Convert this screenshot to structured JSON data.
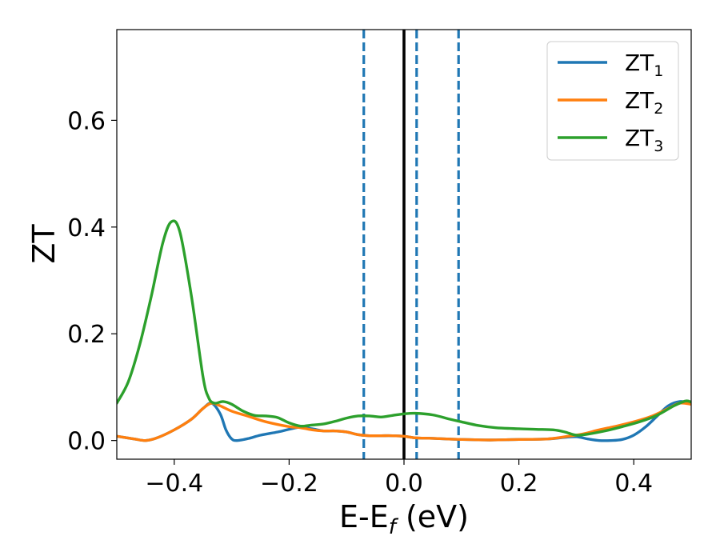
{
  "chart_data": {
    "type": "line",
    "xlabel": "E-E",
    "xlabel_sub": "f",
    "xlabel_unit": " (eV)",
    "ylabel": "ZT",
    "xlim": [
      -0.5,
      0.5
    ],
    "ylim": [
      -0.035,
      0.77
    ],
    "xticks": [
      -0.4,
      -0.2,
      0.0,
      0.2,
      0.4
    ],
    "xtick_labels": [
      "−0.4",
      "−0.2",
      "0.0",
      "0.2",
      "0.4"
    ],
    "yticks": [
      0.0,
      0.2,
      0.4,
      0.6
    ],
    "ytick_labels": [
      "0.0",
      "0.2",
      "0.4",
      "0.6"
    ],
    "grid": false,
    "legend_position": "top-right",
    "vlines": [
      {
        "x": 0.0,
        "style": "solid",
        "color": "#000000"
      },
      {
        "x": -0.07,
        "style": "dashed",
        "color": "#1f77b4"
      },
      {
        "x": 0.022,
        "style": "dashed",
        "color": "#1f77b4"
      },
      {
        "x": 0.095,
        "style": "dashed",
        "color": "#1f77b4"
      }
    ],
    "series": [
      {
        "name": "ZT",
        "sub": "1",
        "color": "#1f77b4",
        "points": [
          [
            -0.5,
            0.008
          ],
          [
            -0.47,
            0.003
          ],
          [
            -0.45,
            0.0
          ],
          [
            -0.43,
            0.005
          ],
          [
            -0.4,
            0.02
          ],
          [
            -0.37,
            0.04
          ],
          [
            -0.35,
            0.06
          ],
          [
            -0.335,
            0.07
          ],
          [
            -0.32,
            0.05
          ],
          [
            -0.31,
            0.02
          ],
          [
            -0.3,
            0.003
          ],
          [
            -0.29,
            0.0
          ],
          [
            -0.27,
            0.004
          ],
          [
            -0.25,
            0.01
          ],
          [
            -0.22,
            0.016
          ],
          [
            -0.2,
            0.021
          ],
          [
            -0.18,
            0.025
          ],
          [
            -0.16,
            0.022
          ],
          [
            -0.14,
            0.018
          ],
          [
            -0.12,
            0.018
          ],
          [
            -0.1,
            0.016
          ],
          [
            -0.08,
            0.011
          ],
          [
            -0.06,
            0.009
          ],
          [
            -0.04,
            0.009
          ],
          [
            -0.02,
            0.009
          ],
          [
            0.0,
            0.008
          ],
          [
            0.02,
            0.005
          ],
          [
            0.05,
            0.004
          ],
          [
            0.1,
            0.002
          ],
          [
            0.15,
            0.001
          ],
          [
            0.2,
            0.002
          ],
          [
            0.25,
            0.003
          ],
          [
            0.28,
            0.006
          ],
          [
            0.3,
            0.007
          ],
          [
            0.32,
            0.003
          ],
          [
            0.34,
            0.0
          ],
          [
            0.36,
            0.0
          ],
          [
            0.38,
            0.002
          ],
          [
            0.4,
            0.01
          ],
          [
            0.42,
            0.025
          ],
          [
            0.44,
            0.045
          ],
          [
            0.46,
            0.065
          ],
          [
            0.48,
            0.073
          ],
          [
            0.5,
            0.07
          ]
        ]
      },
      {
        "name": "ZT",
        "sub": "2",
        "color": "#ff7f0e",
        "points": [
          [
            -0.5,
            0.008
          ],
          [
            -0.47,
            0.003
          ],
          [
            -0.45,
            0.0
          ],
          [
            -0.43,
            0.005
          ],
          [
            -0.4,
            0.02
          ],
          [
            -0.37,
            0.04
          ],
          [
            -0.35,
            0.06
          ],
          [
            -0.335,
            0.07
          ],
          [
            -0.32,
            0.065
          ],
          [
            -0.3,
            0.055
          ],
          [
            -0.27,
            0.045
          ],
          [
            -0.24,
            0.035
          ],
          [
            -0.2,
            0.026
          ],
          [
            -0.18,
            0.024
          ],
          [
            -0.16,
            0.02
          ],
          [
            -0.14,
            0.018
          ],
          [
            -0.12,
            0.018
          ],
          [
            -0.1,
            0.016
          ],
          [
            -0.08,
            0.011
          ],
          [
            -0.06,
            0.009
          ],
          [
            -0.04,
            0.009
          ],
          [
            -0.02,
            0.009
          ],
          [
            0.0,
            0.008
          ],
          [
            0.02,
            0.005
          ],
          [
            0.05,
            0.004
          ],
          [
            0.1,
            0.002
          ],
          [
            0.15,
            0.001
          ],
          [
            0.2,
            0.002
          ],
          [
            0.25,
            0.003
          ],
          [
            0.28,
            0.007
          ],
          [
            0.31,
            0.012
          ],
          [
            0.34,
            0.02
          ],
          [
            0.37,
            0.027
          ],
          [
            0.4,
            0.035
          ],
          [
            0.43,
            0.045
          ],
          [
            0.46,
            0.06
          ],
          [
            0.48,
            0.07
          ],
          [
            0.5,
            0.068
          ]
        ]
      },
      {
        "name": "ZT",
        "sub": "3",
        "color": "#2ca02c",
        "points": [
          [
            -0.5,
            0.07
          ],
          [
            -0.48,
            0.11
          ],
          [
            -0.46,
            0.18
          ],
          [
            -0.44,
            0.27
          ],
          [
            -0.42,
            0.37
          ],
          [
            -0.405,
            0.41
          ],
          [
            -0.39,
            0.39
          ],
          [
            -0.37,
            0.27
          ],
          [
            -0.35,
            0.12
          ],
          [
            -0.34,
            0.08
          ],
          [
            -0.33,
            0.07
          ],
          [
            -0.315,
            0.073
          ],
          [
            -0.3,
            0.068
          ],
          [
            -0.28,
            0.055
          ],
          [
            -0.26,
            0.047
          ],
          [
            -0.24,
            0.046
          ],
          [
            -0.22,
            0.043
          ],
          [
            -0.2,
            0.033
          ],
          [
            -0.18,
            0.027
          ],
          [
            -0.16,
            0.029
          ],
          [
            -0.14,
            0.031
          ],
          [
            -0.12,
            0.036
          ],
          [
            -0.1,
            0.042
          ],
          [
            -0.08,
            0.046
          ],
          [
            -0.06,
            0.046
          ],
          [
            -0.04,
            0.044
          ],
          [
            -0.02,
            0.047
          ],
          [
            0.0,
            0.05
          ],
          [
            0.02,
            0.051
          ],
          [
            0.05,
            0.048
          ],
          [
            0.08,
            0.04
          ],
          [
            0.1,
            0.035
          ],
          [
            0.13,
            0.028
          ],
          [
            0.16,
            0.024
          ],
          [
            0.2,
            0.022
          ],
          [
            0.23,
            0.021
          ],
          [
            0.26,
            0.02
          ],
          [
            0.28,
            0.016
          ],
          [
            0.3,
            0.01
          ],
          [
            0.32,
            0.012
          ],
          [
            0.35,
            0.018
          ],
          [
            0.38,
            0.026
          ],
          [
            0.41,
            0.035
          ],
          [
            0.44,
            0.047
          ],
          [
            0.47,
            0.065
          ],
          [
            0.49,
            0.074
          ],
          [
            0.5,
            0.072
          ]
        ]
      }
    ]
  }
}
